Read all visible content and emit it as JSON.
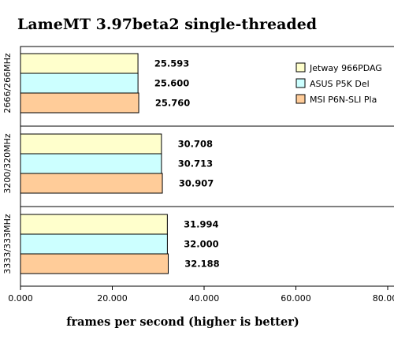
{
  "chart_data": {
    "type": "bar",
    "orientation": "horizontal",
    "title": "LameMT 3.97beta2 single-threaded",
    "xlabel": "frames per second (higher is better)",
    "ylabel": "",
    "xlim": [
      0,
      80
    ],
    "xticks": [
      "0.000",
      "20.000",
      "40.000",
      "60.000",
      "80.000"
    ],
    "categories": [
      "2666/266MHz",
      "3200/320MHz",
      "3333/333MHz"
    ],
    "series": [
      {
        "name": "Jetway 966PDAG",
        "color": "#ffffcc",
        "values": [
          25.593,
          30.708,
          31.994
        ],
        "labels": [
          "25.593",
          "30.708",
          "31.994"
        ]
      },
      {
        "name": "ASUS P5K Del",
        "color": "#ccffff",
        "values": [
          25.6,
          30.713,
          32.0
        ],
        "labels": [
          "25.600",
          "30.713",
          "32.000"
        ]
      },
      {
        "name": "MSI P6N-SLI Pla",
        "color": "#ffcc99",
        "values": [
          25.76,
          30.907,
          32.188
        ],
        "labels": [
          "25.760",
          "30.907",
          "32.188"
        ]
      }
    ],
    "legend": "top-right",
    "grid": false
  }
}
